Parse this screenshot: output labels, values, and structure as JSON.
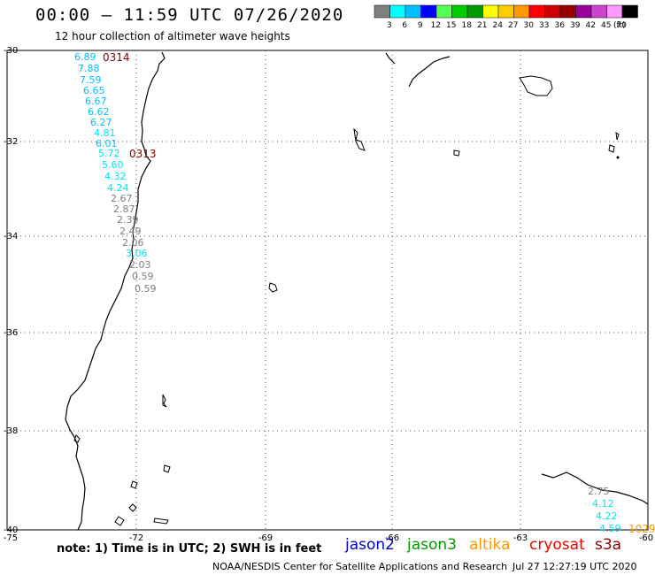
{
  "header": {
    "title": "00:00 – 11:59 UTC 07/26/2020",
    "subtitle": "12 hour collection of altimeter wave heights"
  },
  "color_scale": {
    "unit": "(ft)",
    "swatches": [
      {
        "label": "3",
        "color": "#7f7f7f"
      },
      {
        "label": "6",
        "color": "#00ffff"
      },
      {
        "label": "9",
        "color": "#00bfff"
      },
      {
        "label": "12",
        "color": "#0000ff"
      },
      {
        "label": "15",
        "color": "#55ff55"
      },
      {
        "label": "18",
        "color": "#00cc00"
      },
      {
        "label": "21",
        "color": "#009900"
      },
      {
        "label": "24",
        "color": "#ffff00"
      },
      {
        "label": "27",
        "color": "#ffcc00"
      },
      {
        "label": "30",
        "color": "#ff9900"
      },
      {
        "label": "33",
        "color": "#ff0000"
      },
      {
        "label": "36",
        "color": "#cc0000"
      },
      {
        "label": "39",
        "color": "#990000"
      },
      {
        "label": "42",
        "color": "#990099"
      },
      {
        "label": "45",
        "color": "#cc44cc"
      },
      {
        "label": "70",
        "color": "#ff99ff"
      },
      {
        "label": "",
        "color": "#000000"
      }
    ]
  },
  "axes": {
    "lat_labels": [
      "-30",
      "-32",
      "-34",
      "-36",
      "-38",
      "-40"
    ],
    "lon_labels": [
      "-75",
      "-72",
      "-69",
      "-66",
      "-63",
      "-60"
    ]
  },
  "tracks": [
    {
      "time": "0314",
      "time_color": "#7f0000",
      "points": [
        {
          "v": "6.89",
          "c": "#00bfff"
        },
        {
          "v": "7.88",
          "c": "#00bfff"
        },
        {
          "v": "7.59",
          "c": "#00bfff"
        },
        {
          "v": "6.65",
          "c": "#00bfff"
        },
        {
          "v": "6.67",
          "c": "#00bfff"
        },
        {
          "v": "6.62",
          "c": "#00bfff"
        },
        {
          "v": "6.27",
          "c": "#00bfff"
        },
        {
          "v": "4.81",
          "c": "#00e5ee"
        },
        {
          "v": "6.01",
          "c": "#00bfff"
        }
      ]
    },
    {
      "time": "0313",
      "time_color": "#7f0000",
      "points": [
        {
          "v": "5.72",
          "c": "#00e5ee"
        },
        {
          "v": "5.60",
          "c": "#00e5ee"
        },
        {
          "v": "4.32",
          "c": "#00e5ee"
        },
        {
          "v": "4.24",
          "c": "#00e5ee"
        },
        {
          "v": "2.67",
          "c": "#7f7f7f"
        },
        {
          "v": "2.87",
          "c": "#7f7f7f"
        },
        {
          "v": "2.39",
          "c": "#7f7f7f"
        },
        {
          "v": "2.49",
          "c": "#7f7f7f"
        },
        {
          "v": "2.06",
          "c": "#7f7f7f"
        },
        {
          "v": "3.06",
          "c": "#00e5ee"
        },
        {
          "v": "2.03",
          "c": "#7f7f7f"
        },
        {
          "v": "0.59",
          "c": "#7f7f7f"
        },
        {
          "v": "0.59",
          "c": "#7f7f7f"
        }
      ]
    },
    {
      "time": "1029",
      "time_color": "#ff9900",
      "points": [
        {
          "v": "2.75",
          "c": "#7f7f7f"
        },
        {
          "v": "4.12",
          "c": "#00e5ee"
        },
        {
          "v": "4.22",
          "c": "#00e5ee"
        },
        {
          "v": "4.59",
          "c": "#00e5ee"
        }
      ]
    }
  ],
  "footer": {
    "note": "note: 1) Time is in UTC; 2) SWH is in feet",
    "satellites": [
      {
        "name": "jason2",
        "color": "#0000cc"
      },
      {
        "name": "jason3",
        "color": "#009900"
      },
      {
        "name": "altika",
        "color": "#ff9900"
      },
      {
        "name": "cryosat",
        "color": "#ee0000"
      },
      {
        "name": "s3a",
        "color": "#880000"
      }
    ],
    "credit": "NOAA/NESDIS Center for Satellite Applications and Research",
    "timestamp": "Jul 27 12:27:19 UTC 2020"
  }
}
